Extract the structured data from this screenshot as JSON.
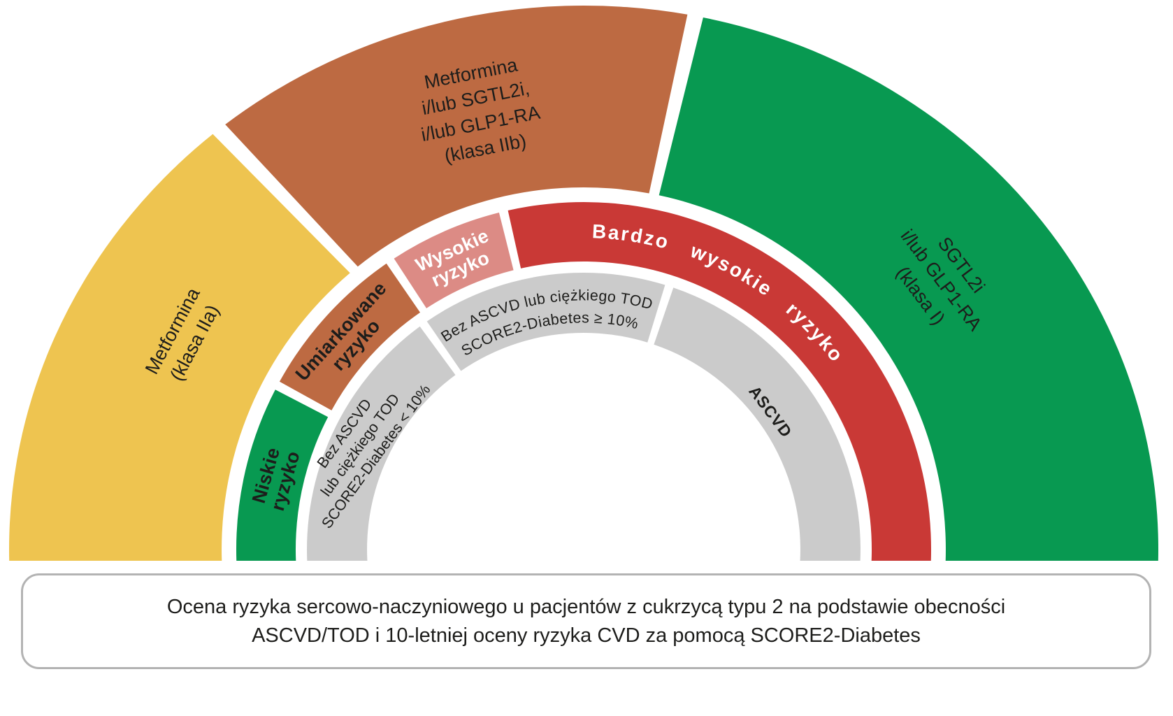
{
  "diagram": {
    "outer_ring": {
      "left": {
        "label": "Metformina\n(klasa IIa)"
      },
      "top": {
        "label": "Metformina\ni/lub SGTL2i,\ni/lub GLP1-RA\n(klasa IIb)"
      },
      "right": {
        "label": "SGTL2i\ni/lub GLP1-RA\n(klasa I)"
      }
    },
    "risk_ring": {
      "low": {
        "label": "Niskie\nryzyko"
      },
      "moderate": {
        "label": "Umiarkowane\nryzyko"
      },
      "high": {
        "label": "Wysokie\nryzyko"
      },
      "very_high": {
        "label": "Bardzo wysokie ryzyko"
      }
    },
    "criteria_ring": {
      "low": {
        "label": "Bez ASCVD\nlub ciężkiego TOD\nSCORE2-Diabetes < 10%"
      },
      "high": {
        "line1": "Bez ASCVD lub ciężkiego TOD",
        "line2": "SCORE2-Diabetes ≥ 10%"
      },
      "ascvd": {
        "label": "ASCVD"
      }
    },
    "colors": {
      "yellow": "#EEC450",
      "rust": "#BD6A42",
      "green": "#089951",
      "pink": "#DC8B85",
      "red": "#C93936",
      "gray": "#CBCBCB",
      "text_dark": "#1D1D1B",
      "text_light": "#FFFFFF",
      "caption_border": "#B3B3B3"
    }
  },
  "caption": {
    "line1": "Ocena ryzyka sercowo-naczyniowego u pacjentów z cukrzycą typu 2 na podstawie obecności",
    "line2": "ASCVD/TOD i 10-letniej oceny ryzyka CVD za pomocą SCORE2-Diabetes"
  }
}
